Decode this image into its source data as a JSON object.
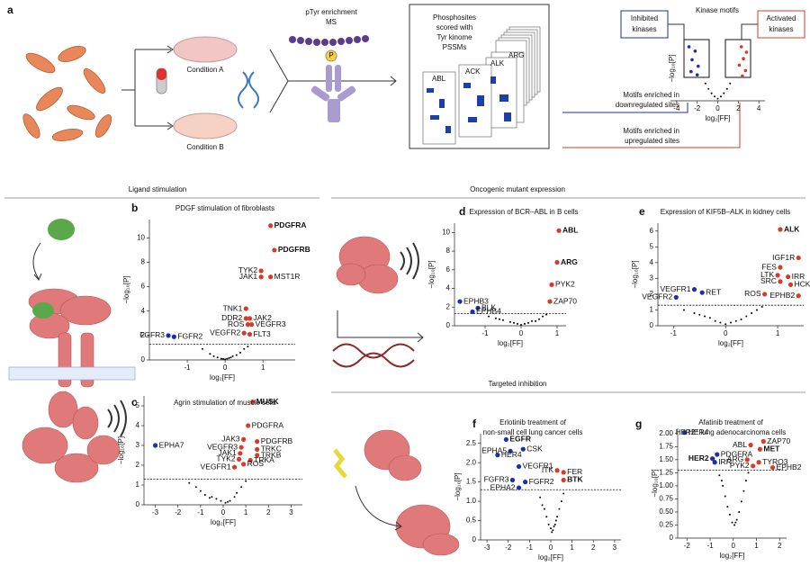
{
  "figure": {
    "a": {
      "letter": "a",
      "condA": "Condition A",
      "condB": "Condition B",
      "ms": [
        "pTyr enrichment",
        "MS"
      ],
      "phospho": "P",
      "pssm": [
        "Phosphosites",
        "scored with",
        "Tyr kinome",
        "PSSMs"
      ],
      "matrices": [
        "ABL",
        "ACK",
        "ALK",
        "ARG"
      ],
      "motifs": "Kinase motifs",
      "inhibited": [
        "Inhibited",
        "kinases"
      ],
      "activated": [
        "Activated",
        "kinases"
      ],
      "down": [
        "Motifs enriched in",
        "downregulated sites"
      ],
      "up": [
        "Motifs enriched in",
        "upregulated sites"
      ]
    },
    "sections": [
      "Ligand stimulation",
      "Oncogenic mutant expression",
      "Targeted inhibition"
    ]
  },
  "chart_data": [
    {
      "type": "scatter",
      "xlabel": "log₂[FF]",
      "ylabel": "−log₁₀[P]",
      "xlim": [
        -4.6,
        4.6
      ],
      "ylim": [
        0,
        6
      ],
      "xticks": [
        -4,
        -2,
        0,
        2,
        4
      ],
      "dots": [
        {
          "color": "#1b2db0",
          "x": [
            -2.8,
            -2.2,
            -2.5,
            -1.9,
            -2.6,
            -2.0
          ],
          "y": [
            5,
            4.6,
            3.8,
            3.2,
            2.7,
            2.4
          ]
        },
        {
          "color": "#d63b2a",
          "x": [
            2.3,
            2.8,
            2.5,
            2.1,
            2.7,
            2.4
          ],
          "y": [
            5,
            4.5,
            3.9,
            3.3,
            2.8,
            2.3
          ]
        },
        {
          "color": "#000000",
          "x": [
            -1.2,
            -0.9,
            -0.6,
            -0.3,
            0,
            0.3,
            0.6,
            0.9,
            1.2
          ],
          "y": [
            1.6,
            1.1,
            0.7,
            0.4,
            0.2,
            0.4,
            0.7,
            1.1,
            1.6
          ]
        }
      ],
      "points": []
    },
    {
      "type": "scatter",
      "panel": "b",
      "title": [
        "PDGF stimulation of fibroblasts"
      ],
      "xlabel": "log₂[FF]",
      "ylabel": "−log₁₀[P]",
      "xlim": [
        -2,
        1.85
      ],
      "ylim": [
        0,
        11.5
      ],
      "xticks": [
        -1,
        0,
        1
      ],
      "yticks": [
        0,
        2,
        4,
        6,
        8,
        10
      ],
      "threshold": 1.3,
      "dots": [
        {
          "color": "#000000",
          "x": [
            -0.6,
            -0.4,
            -0.3,
            -0.2,
            -0.1,
            0,
            0.05,
            0.1,
            0.2,
            0.3,
            0.4,
            0.5,
            0.6,
            -0.05,
            0.15
          ],
          "y": [
            0.9,
            0.5,
            0.3,
            0.2,
            0.1,
            0.05,
            0.1,
            0.15,
            0.3,
            0.4,
            0.6,
            0.9,
            1.1,
            0.08,
            0.2
          ]
        }
      ],
      "points": [
        {
          "label": "PDGFRA",
          "x": 1.2,
          "y": 11,
          "color": "#d63b2a",
          "bold": true
        },
        {
          "label": "PDGFRB",
          "x": 1.3,
          "y": 9,
          "color": "#d63b2a",
          "bold": true
        },
        {
          "label": "TYK2",
          "x": 0.95,
          "y": 7.3,
          "color": "#d63b2a"
        },
        {
          "label": "JAK1",
          "x": 0.95,
          "y": 6.8,
          "color": "#d63b2a"
        },
        {
          "label": "MST1R",
          "x": 1.2,
          "y": 6.8,
          "color": "#d63b2a"
        },
        {
          "label": "TNK1",
          "x": 0.55,
          "y": 4.2,
          "color": "#d63b2a"
        },
        {
          "label": "DDR2",
          "x": 0.55,
          "y": 3.4,
          "color": "#d63b2a"
        },
        {
          "label": "ROS",
          "x": 0.6,
          "y": 2.9,
          "color": "#d63b2a"
        },
        {
          "label": "JAK2",
          "x": 0.65,
          "y": 3.4,
          "color": "#d63b2a"
        },
        {
          "label": "VEGFR3",
          "x": 0.7,
          "y": 2.9,
          "color": "#d63b2a"
        },
        {
          "label": "VEGFR2",
          "x": 0.5,
          "y": 2.2,
          "color": "#d63b2a"
        },
        {
          "label": "FLT3",
          "x": 0.65,
          "y": 2.1,
          "color": "#d63b2a"
        },
        {
          "label": "FGFR3",
          "x": -1.5,
          "y": 2,
          "color": "#1b2db0"
        },
        {
          "label": "FGFR2",
          "x": -1.35,
          "y": 1.9,
          "color": "#1b2db0"
        }
      ]
    },
    {
      "type": "scatter",
      "panel": "c",
      "title": [
        "Agrin stimulation of muscle cells"
      ],
      "xlabel": "log₂[FF]",
      "ylabel": "−log₁₀[P]",
      "xlim": [
        -3.5,
        3.5
      ],
      "ylim": [
        0,
        5.5
      ],
      "xticks": [
        -3,
        -2,
        -1,
        0,
        1,
        2,
        3
      ],
      "yticks": [
        0,
        1,
        2,
        3,
        4,
        5
      ],
      "threshold": 1.3,
      "dots": [
        {
          "color": "#000000",
          "x": [
            -1.5,
            -1.2,
            -1,
            -0.8,
            -0.5,
            -0.3,
            -0.1,
            0.1,
            0.3,
            0.5,
            0.6,
            0.8,
            1.0,
            -0.6,
            0.2
          ],
          "y": [
            1.1,
            0.9,
            0.7,
            0.5,
            0.4,
            0.3,
            0.2,
            0.1,
            0.2,
            0.4,
            0.6,
            0.9,
            1.2,
            0.35,
            0.15
          ]
        }
      ],
      "points": [
        {
          "label": "MUSK",
          "x": 1.3,
          "y": 5.2,
          "color": "#d63b2a",
          "bold": true
        },
        {
          "label": "PDGFRA",
          "x": 1.1,
          "y": 4,
          "color": "#d63b2a"
        },
        {
          "label": "JAK3",
          "x": 0.9,
          "y": 3.3,
          "color": "#d63b2a"
        },
        {
          "label": "PDGFRB",
          "x": 1.5,
          "y": 3.2,
          "color": "#d63b2a"
        },
        {
          "label": "VEGFR3",
          "x": 0.8,
          "y": 2.9,
          "color": "#d63b2a"
        },
        {
          "label": "TRKC",
          "x": 1.5,
          "y": 2.8,
          "color": "#d63b2a"
        },
        {
          "label": "JAK1",
          "x": 0.75,
          "y": 2.6,
          "color": "#d63b2a"
        },
        {
          "label": "TRKB",
          "x": 1.5,
          "y": 2.5,
          "color": "#d63b2a"
        },
        {
          "label": "TYK2",
          "x": 0.7,
          "y": 2.3,
          "color": "#d63b2a"
        },
        {
          "label": "TRKA",
          "x": 1.2,
          "y": 2.25,
          "color": "#d63b2a"
        },
        {
          "label": "ROS",
          "x": 0.9,
          "y": 2.05,
          "color": "#d63b2a"
        },
        {
          "label": "VEGFR1",
          "x": 0.5,
          "y": 1.9,
          "color": "#d63b2a"
        },
        {
          "label": "EPHA7",
          "x": -3,
          "y": 3,
          "color": "#1b2db0"
        }
      ]
    },
    {
      "type": "scatter",
      "panel": "d",
      "title": [
        "Expression of BCR–ABL in B cells"
      ],
      "xlabel": "log₂[FF]",
      "ylabel": "−log₁₀[P]",
      "xlim": [
        -1.85,
        1.25
      ],
      "ylim": [
        0,
        11
      ],
      "xticks": [
        -1,
        0,
        1
      ],
      "yticks": [
        0,
        2,
        4,
        6,
        8,
        10
      ],
      "threshold": 1.3,
      "dots": [
        {
          "color": "#000000",
          "x": [
            -0.9,
            -0.7,
            -0.5,
            -0.3,
            -0.2,
            -0.1,
            0,
            0.1,
            0.2,
            0.3,
            0.5,
            0.6,
            0.7,
            -0.6,
            0.4
          ],
          "y": [
            1.0,
            0.8,
            0.6,
            0.4,
            0.3,
            0.2,
            0.1,
            0.2,
            0.3,
            0.5,
            0.7,
            1.0,
            1.2,
            0.7,
            0.5
          ]
        }
      ],
      "points": [
        {
          "label": "ABL",
          "x": 1.05,
          "y": 10.2,
          "color": "#d63b2a",
          "bold": true
        },
        {
          "label": "ARG",
          "x": 1.0,
          "y": 6.8,
          "color": "#d63b2a",
          "bold": true
        },
        {
          "label": "PYK2",
          "x": 0.85,
          "y": 4.4,
          "color": "#d63b2a"
        },
        {
          "label": "ZAP70",
          "x": 0.8,
          "y": 2.6,
          "color": "#d63b2a"
        },
        {
          "label": "EPHB3",
          "x": -1.7,
          "y": 2.6,
          "color": "#1b2db0"
        },
        {
          "label": "BLK",
          "x": -1.2,
          "y": 1.9,
          "color": "#1b2db0"
        },
        {
          "label": "EPHB4",
          "x": -1.35,
          "y": 1.5,
          "color": "#1b2db0"
        }
      ]
    },
    {
      "type": "scatter",
      "panel": "e",
      "title": [
        "Expression of KIF5B–ALK in kidney cells"
      ],
      "xlabel": "log₂[FF]",
      "ylabel": "−log₁₀[P]",
      "xlim": [
        -1.3,
        1.5
      ],
      "ylim": [
        0,
        6.5
      ],
      "xticks": [
        -1,
        0,
        1
      ],
      "yticks": [
        0,
        1,
        2,
        3,
        4,
        5,
        6
      ],
      "threshold": 1.3,
      "dots": [
        {
          "color": "#000000",
          "x": [
            -0.8,
            -0.6,
            -0.4,
            -0.3,
            -0.2,
            -0.1,
            0,
            0.1,
            0.2,
            0.3,
            0.4,
            0.5,
            0.6,
            -0.5,
            0.7
          ],
          "y": [
            1.0,
            0.8,
            0.6,
            0.5,
            0.3,
            0.2,
            0.1,
            0.2,
            0.3,
            0.4,
            0.6,
            0.8,
            1.0,
            0.7,
            1.2
          ]
        }
      ],
      "points": [
        {
          "label": "ALK",
          "x": 1.05,
          "y": 6.1,
          "color": "#d63b2a",
          "bold": true
        },
        {
          "label": "IGF1R",
          "x": 1.4,
          "y": 4.3,
          "color": "#d63b2a"
        },
        {
          "label": "FES",
          "x": 1.05,
          "y": 3.7,
          "color": "#d63b2a"
        },
        {
          "label": "LTK",
          "x": 1.0,
          "y": 3.2,
          "color": "#d63b2a"
        },
        {
          "label": "IRR",
          "x": 1.2,
          "y": 3.1,
          "color": "#d63b2a"
        },
        {
          "label": "SRC",
          "x": 1.05,
          "y": 2.8,
          "color": "#d63b2a"
        },
        {
          "label": "HCK",
          "x": 1.25,
          "y": 2.6,
          "color": "#d63b2a"
        },
        {
          "label": "ROS",
          "x": 0.75,
          "y": 2.0,
          "color": "#d63b2a"
        },
        {
          "label": "EPHB2",
          "x": 1.4,
          "y": 1.9,
          "color": "#d63b2a"
        },
        {
          "label": "VEGFR1",
          "x": -0.6,
          "y": 2.3,
          "color": "#1b2db0"
        },
        {
          "label": "RET",
          "x": -0.45,
          "y": 2.1,
          "color": "#1b2db0"
        },
        {
          "label": "VEGFR2",
          "x": -0.95,
          "y": 1.8,
          "color": "#1b2db0"
        }
      ]
    },
    {
      "type": "scatter",
      "panel": "f",
      "title": [
        "Erlotinib treatment of",
        "non-small cell lung cancer cells"
      ],
      "xlabel": "log₂[FF]",
      "ylabel": "−log₁₀[P]",
      "xlim": [
        -3.3,
        3.3
      ],
      "ylim": [
        0,
        2.75
      ],
      "xticks": [
        -3,
        -2,
        -1,
        0,
        1,
        2,
        3
      ],
      "yticks": [
        0,
        0.5,
        {
          "value": 1,
          "label": "1.0"
        },
        1.5,
        {
          "value": 2,
          "label": "2.0"
        },
        2.5
      ],
      "threshold": 1.3,
      "dots": [
        {
          "color": "#000000",
          "x": [
            -0.5,
            -0.3,
            -0.2,
            -0.1,
            0,
            0.1,
            0.2,
            0.3,
            0.4,
            0.5,
            0.6,
            -0.4,
            0.05,
            0.15,
            0.25
          ],
          "y": [
            1.1,
            0.8,
            0.6,
            0.4,
            0.3,
            0.25,
            0.4,
            0.6,
            0.8,
            1.0,
            1.2,
            0.9,
            0.2,
            0.35,
            0.5
          ]
        }
      ],
      "points": [
        {
          "label": "EGFR",
          "x": -2.1,
          "y": 2.6,
          "color": "#1b2db0",
          "bold": true
        },
        {
          "label": "EPHA5",
          "x": -1.9,
          "y": 2.3,
          "color": "#1b2db0"
        },
        {
          "label": "CSK",
          "x": -1.3,
          "y": 2.35,
          "color": "#1b2db0"
        },
        {
          "label": "HER4",
          "x": -2.5,
          "y": 2.2,
          "color": "#1b2db0"
        },
        {
          "label": "VEGFR1",
          "x": -1.5,
          "y": 1.9,
          "color": "#1b2db0"
        },
        {
          "label": "FGFR3",
          "x": -1.8,
          "y": 1.55,
          "color": "#1b2db0"
        },
        {
          "label": "FGFR2",
          "x": -1.2,
          "y": 1.5,
          "color": "#1b2db0"
        },
        {
          "label": "EPHA2",
          "x": -1.5,
          "y": 1.35,
          "color": "#1b2db0"
        },
        {
          "label": "ITK",
          "x": 0.3,
          "y": 1.8,
          "color": "#d63b2a"
        },
        {
          "label": "FER",
          "x": 0.6,
          "y": 1.75,
          "color": "#d63b2a"
        },
        {
          "label": "BTK",
          "x": 0.6,
          "y": 1.55,
          "color": "#d63b2a",
          "bold": true
        }
      ]
    },
    {
      "type": "scatter",
      "panel": "g",
      "title": [
        "Afatinib treatment of",
        "HER2⁺ lung adenocarcinoma cells"
      ],
      "xlabel": "log₂[FF]",
      "ylabel": "−log₁₀[P]",
      "xlim": [
        -2.4,
        2.3
      ],
      "ylim": [
        0,
        2.1
      ],
      "xticks": [
        -2,
        -1,
        0,
        1,
        2
      ],
      "yticks": [
        0,
        {
          "value": 0.25,
          "label": "0.25"
        },
        {
          "value": 0.5,
          "label": "0.50"
        },
        {
          "value": 0.75,
          "label": "0.75"
        },
        {
          "value": 1,
          "label": "1.00"
        },
        {
          "value": 1.25,
          "label": "1.25"
        },
        {
          "value": 1.5,
          "label": "1.50"
        },
        {
          "value": 1.75,
          "label": "1.75"
        },
        {
          "value": 2,
          "label": "2.00"
        }
      ],
      "threshold": 1.3,
      "dots": [
        {
          "color": "#000000",
          "x": [
            -0.6,
            -0.45,
            -0.35,
            -0.25,
            -0.15,
            -0.05,
            0.05,
            0.15,
            0.25,
            0.35,
            0.45,
            0.55,
            0.65,
            -0.5,
            0.1
          ],
          "y": [
            1.2,
            1.0,
            0.8,
            0.6,
            0.45,
            0.3,
            0.25,
            0.35,
            0.5,
            0.7,
            0.9,
            1.1,
            1.25,
            1.1,
            0.3
          ]
        }
      ],
      "points": [
        {
          "label": "HER4",
          "x": -2.1,
          "y": 2.02,
          "color": "#1b2db0"
        },
        {
          "label": "HER2",
          "x": -0.9,
          "y": 1.52,
          "color": "#1b2db0",
          "bold": true
        },
        {
          "label": "PDGFRA",
          "x": -0.7,
          "y": 1.6,
          "color": "#1b2db0"
        },
        {
          "label": "IRR",
          "x": -0.8,
          "y": 1.45,
          "color": "#1b2db0"
        },
        {
          "label": "ABL",
          "x": 0.75,
          "y": 1.78,
          "color": "#d63b2a"
        },
        {
          "label": "ZAP70",
          "x": 1.3,
          "y": 1.85,
          "color": "#d63b2a"
        },
        {
          "label": "MET",
          "x": 1.15,
          "y": 1.7,
          "color": "#d63b2a",
          "bold": true
        },
        {
          "label": "ARG",
          "x": 0.6,
          "y": 1.5,
          "color": "#d63b2a"
        },
        {
          "label": "TYRO3",
          "x": 1.1,
          "y": 1.45,
          "color": "#d63b2a"
        },
        {
          "label": "PYK2",
          "x": 0.85,
          "y": 1.38,
          "color": "#d63b2a"
        },
        {
          "label": "EPHB2",
          "x": 1.7,
          "y": 1.35,
          "color": "#d63b2a"
        }
      ]
    }
  ]
}
